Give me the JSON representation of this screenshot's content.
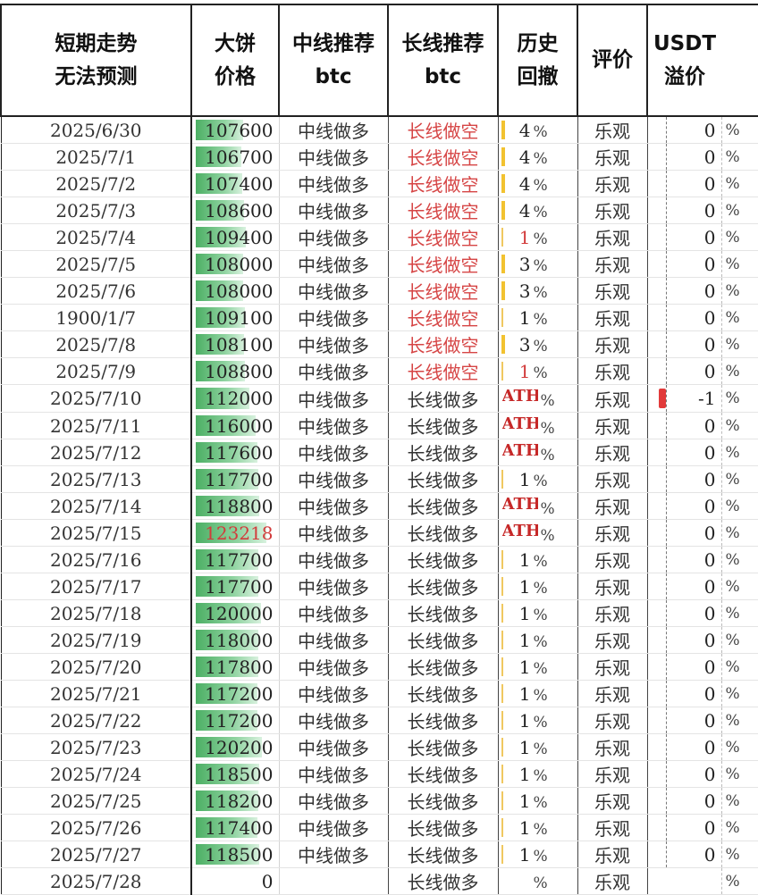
{
  "headers": {
    "date": [
      "短期走势",
      "无法预测"
    ],
    "price": [
      "大饼",
      "价格"
    ],
    "mid": [
      "中线推荐",
      "btc"
    ],
    "long": [
      "长线推荐",
      "btc"
    ],
    "drawdown": [
      "历史",
      "回撤"
    ],
    "eval": "评价",
    "usdt": [
      "USDT",
      "溢价"
    ]
  },
  "pct_sign": "%",
  "rows": [
    {
      "date": "2025/6/30",
      "price": "107600",
      "mid": "中线做多",
      "long": "长线做空",
      "long_short": true,
      "dd": "4",
      "dd_bar": "thick",
      "eval": "乐观",
      "usdt": "0"
    },
    {
      "date": "2025/7/1",
      "price": "106700",
      "mid": "中线做多",
      "long": "长线做空",
      "long_short": true,
      "dd": "4",
      "dd_bar": "thick",
      "eval": "乐观",
      "usdt": "0"
    },
    {
      "date": "2025/7/2",
      "price": "107400",
      "mid": "中线做多",
      "long": "长线做空",
      "long_short": true,
      "dd": "4",
      "dd_bar": "thick",
      "eval": "乐观",
      "usdt": "0"
    },
    {
      "date": "2025/7/3",
      "price": "108600",
      "mid": "中线做多",
      "long": "长线做空",
      "long_short": true,
      "dd": "4",
      "dd_bar": "thick",
      "eval": "乐观",
      "usdt": "0"
    },
    {
      "date": "2025/7/4",
      "price": "109400",
      "mid": "中线做多",
      "long": "长线做空",
      "long_short": true,
      "dd": "1",
      "dd_red": true,
      "dd_bar": "thin",
      "eval": "乐观",
      "usdt": "0"
    },
    {
      "date": "2025/7/5",
      "price": "108000",
      "mid": "中线做多",
      "long": "长线做空",
      "long_short": true,
      "dd": "3",
      "dd_bar": "thick",
      "eval": "乐观",
      "usdt": "0"
    },
    {
      "date": "2025/7/6",
      "price": "108000",
      "mid": "中线做多",
      "long": "长线做空",
      "long_short": true,
      "dd": "3",
      "dd_bar": "thick",
      "eval": "乐观",
      "usdt": "0"
    },
    {
      "date": "1900/1/7",
      "price": "109100",
      "mid": "中线做多",
      "long": "长线做空",
      "long_short": true,
      "dd": "1",
      "dd_bar": "thin",
      "eval": "乐观",
      "usdt": "0"
    },
    {
      "date": "2025/7/8",
      "price": "108100",
      "mid": "中线做多",
      "long": "长线做空",
      "long_short": true,
      "dd": "3",
      "dd_bar": "thick",
      "eval": "乐观",
      "usdt": "0"
    },
    {
      "date": "2025/7/9",
      "price": "108800",
      "mid": "中线做多",
      "long": "长线做空",
      "long_short": true,
      "dd": "1",
      "dd_red": true,
      "dd_bar": "thin",
      "eval": "乐观",
      "usdt": "0"
    },
    {
      "date": "2025/7/10",
      "price": "112000",
      "mid": "中线做多",
      "long": "长线做多",
      "dd": "ATH",
      "eval": "乐观",
      "usdt": "-1",
      "usdt_neg": true,
      "big": true
    },
    {
      "date": "2025/7/11",
      "price": "116000",
      "mid": "中线做多",
      "long": "长线做多",
      "dd": "ATH",
      "eval": "乐观",
      "usdt": "0"
    },
    {
      "date": "2025/7/12",
      "price": "117600",
      "mid": "中线做多",
      "long": "长线做多",
      "dd": "ATH",
      "eval": "乐观",
      "usdt": "0"
    },
    {
      "date": "2025/7/13",
      "price": "117700",
      "mid": "中线做多",
      "long": "长线做多",
      "dd": "1",
      "dd_bar": "thin",
      "eval": "乐观",
      "usdt": "0"
    },
    {
      "date": "2025/7/14",
      "price": "118800",
      "mid": "中线做多",
      "long": "长线做多",
      "dd": "ATH",
      "eval": "乐观",
      "usdt": "0"
    },
    {
      "date": "2025/7/15",
      "price": "123218",
      "price_red": true,
      "mid": "中线做多",
      "long": "长线做多",
      "dd": "ATH",
      "eval": "乐观",
      "usdt": "0"
    },
    {
      "date": "2025/7/16",
      "price": "117700",
      "mid": "中线做多",
      "long": "长线做多",
      "dd": "1",
      "dd_bar": "thin",
      "eval": "乐观",
      "usdt": "0"
    },
    {
      "date": "2025/7/17",
      "price": "117700",
      "mid": "中线做多",
      "long": "长线做多",
      "dd": "1",
      "dd_bar": "thin",
      "eval": "乐观",
      "usdt": "0"
    },
    {
      "date": "2025/7/18",
      "price": "120000",
      "mid": "中线做多",
      "long": "长线做多",
      "dd": "1",
      "dd_bar": "thin",
      "eval": "乐观",
      "usdt": "0"
    },
    {
      "date": "2025/7/19",
      "price": "118000",
      "mid": "中线做多",
      "long": "长线做多",
      "dd": "1",
      "dd_bar": "thin",
      "eval": "乐观",
      "usdt": "0"
    },
    {
      "date": "2025/7/20",
      "price": "117800",
      "mid": "中线做多",
      "long": "长线做多",
      "dd": "1",
      "dd_bar": "thin",
      "eval": "乐观",
      "usdt": "0"
    },
    {
      "date": "2025/7/21",
      "price": "117200",
      "mid": "中线做多",
      "long": "长线做多",
      "dd": "1",
      "dd_bar": "thin",
      "eval": "乐观",
      "usdt": "0"
    },
    {
      "date": "2025/7/22",
      "price": "117200",
      "mid": "中线做多",
      "long": "长线做多",
      "dd": "1",
      "dd_bar": "thin",
      "eval": "乐观",
      "usdt": "0"
    },
    {
      "date": "2025/7/23",
      "price": "120200",
      "mid": "中线做多",
      "long": "长线做多",
      "dd": "1",
      "dd_bar": "thin",
      "eval": "乐观",
      "usdt": "0"
    },
    {
      "date": "2025/7/24",
      "price": "118500",
      "mid": "中线做多",
      "long": "长线做多",
      "dd": "1",
      "dd_bar": "thin",
      "eval": "乐观",
      "usdt": "0"
    },
    {
      "date": "2025/7/25",
      "price": "118200",
      "mid": "中线做多",
      "long": "长线做多",
      "dd": "1",
      "dd_bar": "thin",
      "eval": "乐观",
      "usdt": "0"
    },
    {
      "date": "2025/7/26",
      "price": "117400",
      "mid": "中线做多",
      "long": "长线做多",
      "dd": "1",
      "dd_bar": "thin",
      "eval": "乐观",
      "usdt": "0"
    },
    {
      "date": "2025/7/27",
      "price": "118500",
      "mid": "中线做多",
      "long": "长线做多",
      "dd": "1",
      "dd_bar": "thin",
      "eval": "乐观",
      "usdt": "0"
    },
    {
      "date": "2025/7/28",
      "price": "0",
      "price_nobar": true,
      "mid": "",
      "long": "长线做多",
      "dd": "",
      "eval": "乐观",
      "usdt": "",
      "usdt_noaxis": true
    }
  ]
}
